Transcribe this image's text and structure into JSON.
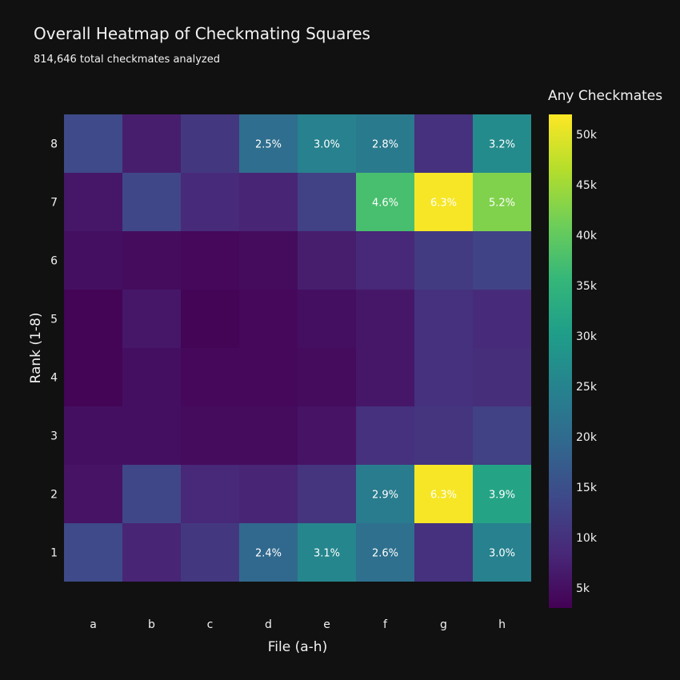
{
  "chart_data": {
    "type": "heatmap",
    "title": "Overall Heatmap of Checkmating Squares",
    "subtitle": "814,646 total checkmates analyzed",
    "xlabel": "File (a-h)",
    "ylabel": "Rank (1-8)",
    "x_categories": [
      "a",
      "b",
      "c",
      "d",
      "e",
      "f",
      "g",
      "h"
    ],
    "y_categories": [
      "1",
      "2",
      "3",
      "4",
      "5",
      "6",
      "7",
      "8"
    ],
    "z_rows_by_rank": {
      "1": [
        14000,
        8000,
        11000,
        19500,
        25500,
        21000,
        10000,
        24500
      ],
      "2": [
        5500,
        13500,
        8500,
        8000,
        10500,
        23500,
        51500,
        31500
      ],
      "3": [
        5000,
        5000,
        4500,
        4500,
        5500,
        10000,
        10500,
        12500
      ],
      "4": [
        3500,
        5000,
        4000,
        4000,
        4500,
        6000,
        10000,
        9500
      ],
      "5": [
        3500,
        6000,
        3500,
        4000,
        5000,
        6000,
        10000,
        9000
      ],
      "6": [
        5000,
        4500,
        4000,
        4500,
        7000,
        8500,
        11500,
        13000
      ],
      "7": [
        6000,
        13500,
        9000,
        8000,
        12500,
        37500,
        51500,
        42500
      ],
      "8": [
        14000,
        7000,
        11000,
        20500,
        24500,
        23000,
        10000,
        26500
      ]
    },
    "annotations": [
      {
        "file": "d",
        "rank": "8",
        "text": "2.5%"
      },
      {
        "file": "e",
        "rank": "8",
        "text": "3.0%"
      },
      {
        "file": "f",
        "rank": "8",
        "text": "2.8%"
      },
      {
        "file": "h",
        "rank": "8",
        "text": "3.2%"
      },
      {
        "file": "f",
        "rank": "7",
        "text": "4.6%"
      },
      {
        "file": "g",
        "rank": "7",
        "text": "6.3%"
      },
      {
        "file": "h",
        "rank": "7",
        "text": "5.2%"
      },
      {
        "file": "f",
        "rank": "2",
        "text": "2.9%"
      },
      {
        "file": "g",
        "rank": "2",
        "text": "6.3%"
      },
      {
        "file": "h",
        "rank": "2",
        "text": "3.9%"
      },
      {
        "file": "d",
        "rank": "1",
        "text": "2.4%"
      },
      {
        "file": "e",
        "rank": "1",
        "text": "3.1%"
      },
      {
        "file": "f",
        "rank": "1",
        "text": "2.6%"
      },
      {
        "file": "h",
        "rank": "1",
        "text": "3.0%"
      }
    ],
    "colorscale": "Viridis",
    "colorbar": {
      "title": "Any Checkmates",
      "range": [
        3000,
        52000
      ],
      "ticks": [
        {
          "value": 5000,
          "label": "5k"
        },
        {
          "value": 10000,
          "label": "10k"
        },
        {
          "value": 15000,
          "label": "15k"
        },
        {
          "value": 20000,
          "label": "20k"
        },
        {
          "value": 25000,
          "label": "25k"
        },
        {
          "value": 30000,
          "label": "30k"
        },
        {
          "value": 35000,
          "label": "35k"
        },
        {
          "value": 40000,
          "label": "40k"
        },
        {
          "value": 45000,
          "label": "45k"
        },
        {
          "value": 50000,
          "label": "50k"
        }
      ]
    },
    "colors": {
      "background": "#111111",
      "text": "#f2f2f2"
    }
  }
}
